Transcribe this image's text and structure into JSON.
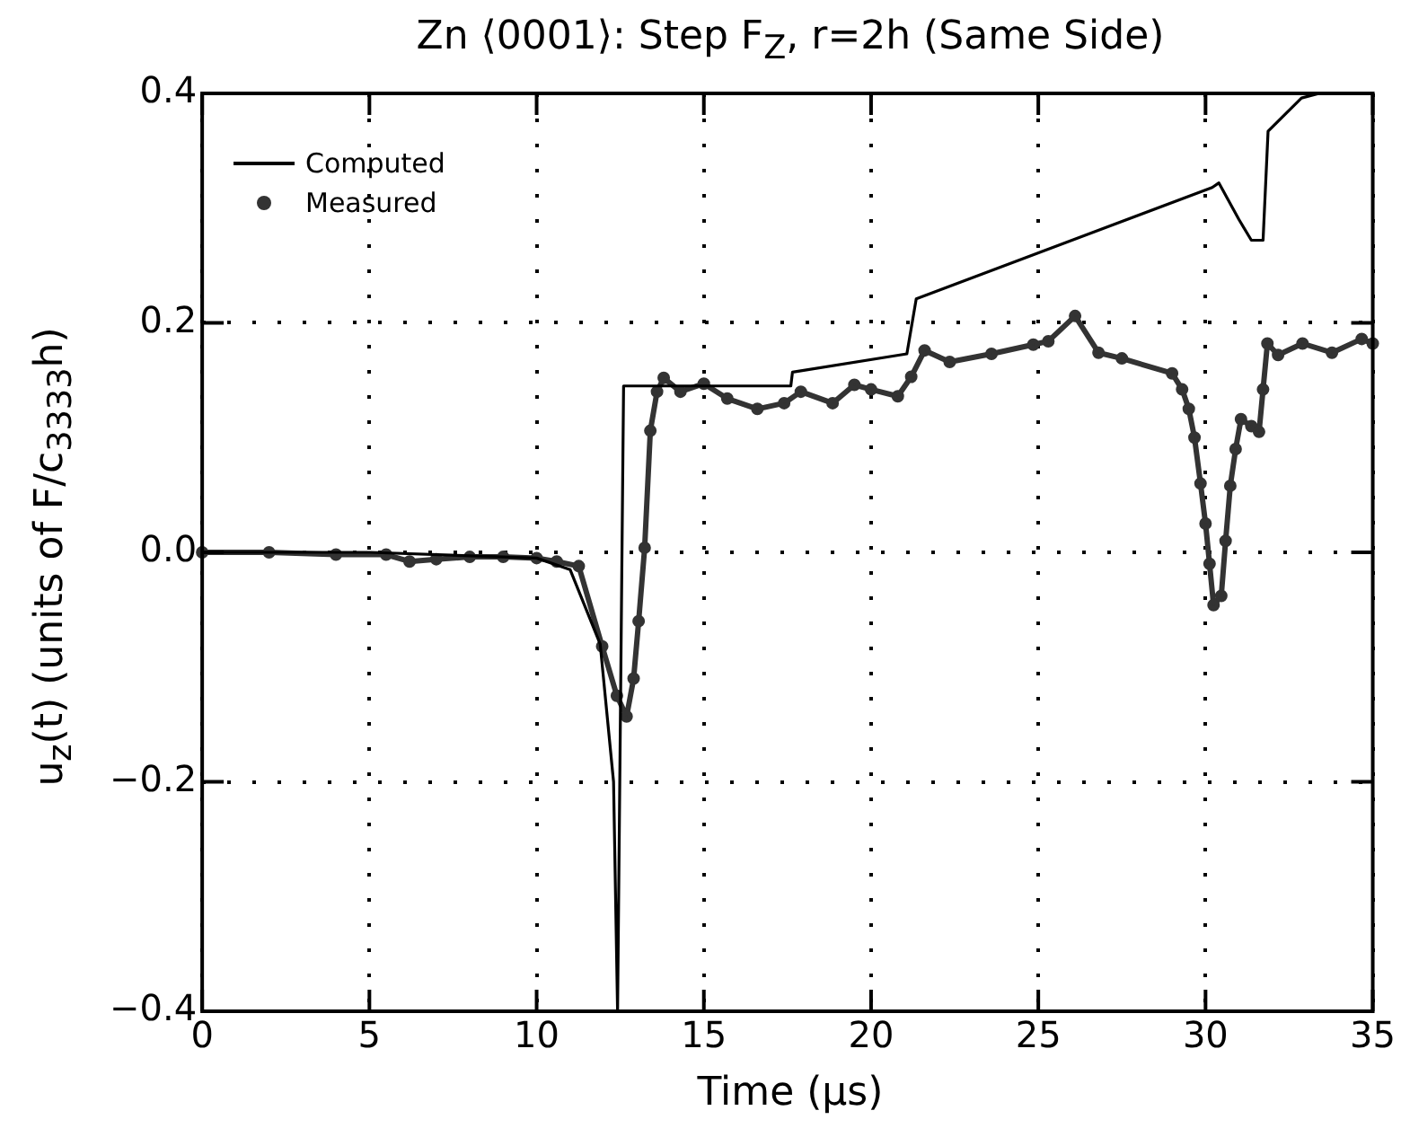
{
  "chart_data": {
    "type": "line",
    "title": "Zn ⟨0001⟩: Step F$_{Z}$, r=2h (Same Side)",
    "xlabel": "Time  (μs)",
    "ylabel": "u$_{z}$(t)  (units of F/c$_{3333}$h)",
    "xlim": [
      0,
      35
    ],
    "xticks": [
      0,
      5,
      10,
      15,
      20,
      25,
      30,
      35
    ],
    "ylim": [
      -0.4,
      0.4
    ],
    "yticks": [
      {
        "value": -0.4,
        "label": "−0.4"
      },
      {
        "value": -0.2,
        "label": "−0.2"
      },
      {
        "value": 0,
        "label": "0.0"
      },
      0.2,
      0.4
    ],
    "grid": true,
    "legend": "top left",
    "series": [
      {
        "name": "Computed",
        "color": "#000000",
        "marker": "none",
        "x": [
          0,
          5,
          10,
          11,
          11.9,
          12.3,
          12.42,
          12.6,
          17.6,
          17.65,
          21.07,
          21.35,
          30.2,
          30.4,
          31.0,
          31.37,
          31.72,
          31.87,
          32.87,
          33.4
        ],
        "values": [
          0,
          0,
          -0.005,
          -0.015,
          -0.08,
          -0.2,
          -0.4,
          0.145,
          0.145,
          0.157,
          0.173,
          0.221,
          0.318,
          0.322,
          0.29,
          0.272,
          0.272,
          0.367,
          0.396,
          0.4
        ]
      },
      {
        "name": "Measured",
        "color": "#333333",
        "marker": "circle",
        "x": [
          0,
          2,
          4,
          5.5,
          6.2,
          7,
          8,
          9,
          10,
          10.6,
          11.26,
          11.96,
          12.4,
          12.69,
          12.9,
          13.05,
          13.23,
          13.4,
          13.6,
          13.8,
          14.3,
          15.0,
          15.7,
          16.6,
          17.4,
          17.9,
          18.85,
          19.5,
          20.0,
          20.8,
          21.2,
          21.6,
          22.35,
          23.6,
          24.85,
          25.3,
          26.1,
          26.8,
          27.5,
          29.0,
          29.3,
          29.5,
          29.67,
          29.85,
          30.0,
          30.12,
          30.24,
          30.47,
          30.6,
          30.74,
          30.9,
          31.06,
          31.37,
          31.6,
          31.72,
          31.85,
          32.17,
          32.9,
          33.78,
          34.67,
          35
        ],
        "values": [
          0,
          0,
          -0.002,
          -0.002,
          -0.008,
          -0.006,
          -0.004,
          -0.004,
          -0.005,
          -0.008,
          -0.012,
          -0.082,
          -0.125,
          -0.143,
          -0.11,
          -0.06,
          0.004,
          0.106,
          0.14,
          0.152,
          0.14,
          0.147,
          0.134,
          0.125,
          0.13,
          0.14,
          0.13,
          0.146,
          0.142,
          0.136,
          0.153,
          0.176,
          0.166,
          0.173,
          0.181,
          0.184,
          0.206,
          0.174,
          0.169,
          0.156,
          0.142,
          0.125,
          0.1,
          0.06,
          0.025,
          -0.01,
          -0.046,
          -0.038,
          0.01,
          0.058,
          0.09,
          0.116,
          0.11,
          0.105,
          0.142,
          0.182,
          0.172,
          0.182,
          0.174,
          0.186,
          0.182
        ]
      }
    ]
  }
}
